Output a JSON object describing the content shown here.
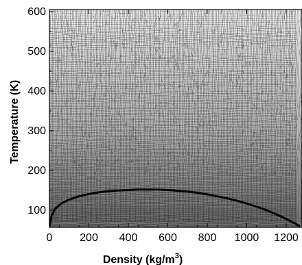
{
  "chart_data": {
    "type": "line",
    "title": "",
    "xlabel": "Density (kg/m",
    "xlabel_sup": "3",
    "xlabel_close": ")",
    "ylabel": "Temperature (K)",
    "xlim": [
      0,
      1280
    ],
    "ylim": [
      57,
      605
    ],
    "x_ticks": [
      0,
      200,
      400,
      600,
      800,
      1000,
      1200
    ],
    "y_ticks": [
      100,
      200,
      300,
      400,
      500,
      600
    ],
    "background": "computational mesh",
    "series": [
      {
        "x": [
          0,
          10,
          30,
          60,
          100,
          150,
          200,
          250,
          300,
          350,
          400,
          450,
          500,
          550,
          600,
          650,
          700,
          750,
          800,
          850,
          900,
          950,
          1000,
          1050,
          1100,
          1150,
          1200,
          1240,
          1270
        ],
        "y": [
          58,
          85,
          104,
          117,
          127,
          135,
          141,
          145,
          148,
          150,
          151,
          152,
          152,
          152,
          151,
          149,
          147,
          144,
          140,
          135,
          130,
          124,
          117,
          109,
          100,
          90,
          78,
          68,
          60
        ]
      }
    ]
  }
}
